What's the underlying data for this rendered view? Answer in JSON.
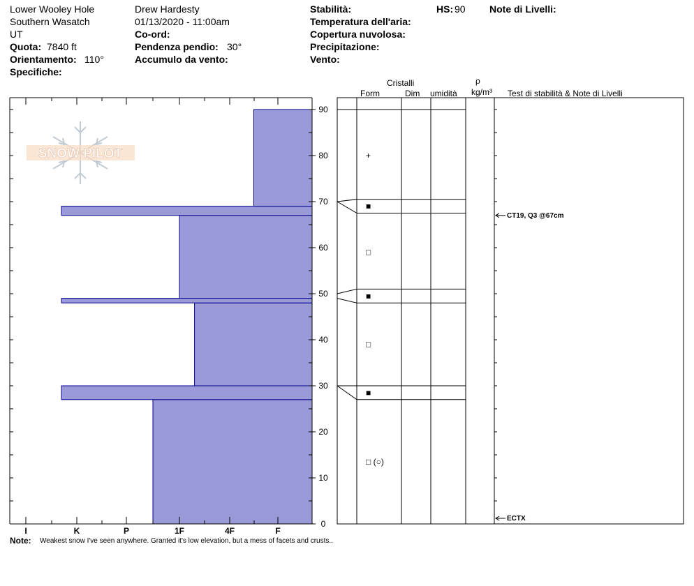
{
  "header": {
    "location": "Lower Wooley Hole",
    "range": "Southern Wasatch",
    "state": "UT",
    "elevation_label": "Quota:",
    "elevation_value": "7840 ft",
    "aspect_label": "Orientamento:",
    "aspect_value": "110°",
    "specifics_label": "Specifiche:",
    "observer": "Drew Hardesty",
    "datetime": "01/13/2020 - 11:00am",
    "coord_label": "Co-ord:",
    "slope_label": "Pendenza pendio:",
    "slope_value": "30°",
    "wind_loading_label": "Accumulo da vento:",
    "stability_label": "Stabilità:",
    "air_temp_label": "Temperatura dell'aria:",
    "cloud_label": "Copertura nuvolosa:",
    "precip_label": "Precipitazione:",
    "wind_label": "Vento:",
    "hs_label": "HS:",
    "hs_value": "90",
    "layer_notes_label": "Note di Livelli:"
  },
  "columns": {
    "crystals": "Cristalli",
    "form": "Form",
    "dim": "Dim",
    "moisture": "umidità",
    "rho": "ρ",
    "density_unit": "kg/m³",
    "tests": "Test di stabilità & Note di Livelli"
  },
  "watermark": "SNOW PILOT",
  "note_label": "Note:",
  "note_text": "Weakest snow I've seen anywhere.  Granted it's low elevation, but a mess of facets and crusts..",
  "colors": {
    "hardness_fill": "#9a9ad8",
    "hardness_stroke": "#00008b"
  },
  "chart_data": {
    "type": "bar",
    "orientation": "horizontal",
    "y_range": [
      0,
      90
    ],
    "y_ticks": [
      "0",
      "10",
      "20",
      "30",
      "40",
      "50",
      "60",
      "70",
      "80",
      "90"
    ],
    "hardness_ticks": [
      "I",
      "K",
      "P",
      "1F",
      "4F",
      "F"
    ],
    "layers": [
      {
        "bottom": 0,
        "top": 27,
        "hardness": "1F-"
      },
      {
        "bottom": 27,
        "top": 30,
        "hardness": "P+"
      },
      {
        "bottom": 30,
        "top": 48,
        "hardness": "4F-"
      },
      {
        "bottom": 48,
        "top": 49,
        "hardness": "P+"
      },
      {
        "bottom": 49,
        "top": 67,
        "hardness": "4F"
      },
      {
        "bottom": 67,
        "top": 69,
        "hardness": "P+"
      },
      {
        "bottom": 69,
        "top": 90,
        "hardness": "F+"
      }
    ],
    "hardness_values": [
      2.5,
      0.7,
      3.3,
      0.7,
      3.0,
      0.7,
      4.5
    ],
    "layer_boundaries": [
      27,
      30,
      48,
      51,
      67.5,
      70.5,
      90
    ],
    "crystal_forms": [
      {
        "depth": 80,
        "symbol": "+"
      },
      {
        "depth": 69,
        "symbol": "■"
      },
      {
        "depth": 59,
        "symbol": "□"
      },
      {
        "depth": 49.5,
        "symbol": "■"
      },
      {
        "depth": 39,
        "symbol": "□"
      },
      {
        "depth": 28.5,
        "symbol": "■"
      },
      {
        "depth": 13.5,
        "symbol": "□ (○)"
      }
    ],
    "tests": [
      {
        "depth": 67,
        "label": "CT19, Q3 @67cm"
      },
      {
        "depth": 0,
        "label": "ECTX"
      }
    ]
  }
}
